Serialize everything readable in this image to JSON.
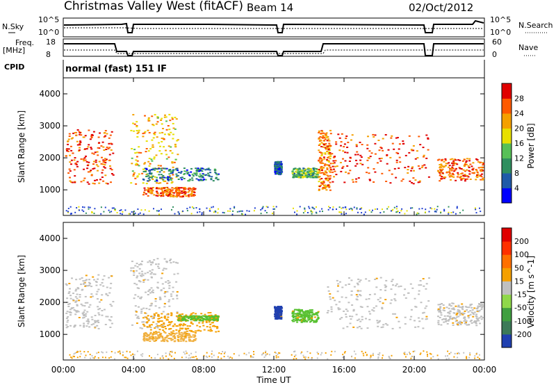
{
  "header": {
    "station": "Christmas Valley West (fitACF)",
    "beam": "Beam 14",
    "date": "02/Oct/2012",
    "cpid_label": "CPID",
    "cpid_value": "normal (fast) 151 IF"
  },
  "strips": {
    "nsky_label": "N.Sky",
    "nsearch_label": "N.Search",
    "nsky_ticks": [
      "10^5",
      "10^0"
    ],
    "nsearch_ticks": [
      "10^5",
      "10^0"
    ],
    "freq_label": "Freq.",
    "freq_unit": "[MHz]",
    "freq_ticks": [
      "18",
      "8"
    ],
    "nave_label": "Nave",
    "nave_ticks": [
      "60",
      "0"
    ]
  },
  "chart_data": [
    {
      "type": "heatmap",
      "name": "power",
      "ylabel": "Slant Range [km]",
      "yticks": [
        1000,
        2000,
        3000,
        4000
      ],
      "ylim": [
        200,
        4500
      ],
      "xlim": [
        0,
        24
      ],
      "colorbar": {
        "label": "Power [dB]",
        "ticks": [
          "28",
          "24",
          "20",
          "16",
          "12",
          "8",
          "4"
        ],
        "colors": [
          "#0000ff",
          "#1f5aa8",
          "#2f8f5f",
          "#57c057",
          "#e8e000",
          "#f5a000",
          "#ff5a00",
          "#e00000"
        ]
      },
      "regions": [
        {
          "x": [
            0.1,
            2.8
          ],
          "range": [
            1200,
            2900
          ],
          "level": 0.85
        },
        {
          "x": [
            3.8,
            6.5
          ],
          "range": [
            1200,
            3400
          ],
          "level": 0.65
        },
        {
          "x": [
            4.5,
            8.8
          ],
          "range": [
            1300,
            1700
          ],
          "level": 0.25
        },
        {
          "x": [
            4.5,
            7.5
          ],
          "range": [
            800,
            1100
          ],
          "level": 0.8
        },
        {
          "x": [
            12.0,
            12.4
          ],
          "range": [
            1500,
            1900
          ],
          "level": 0.2
        },
        {
          "x": [
            13.0,
            14.5
          ],
          "range": [
            1400,
            1700
          ],
          "level": 0.4
        },
        {
          "x": [
            14.5,
            15.2
          ],
          "range": [
            1000,
            2900
          ],
          "level": 0.75
        },
        {
          "x": [
            15.2,
            20.8
          ],
          "range": [
            1200,
            2800
          ],
          "level": 0.85
        },
        {
          "x": [
            21.3,
            23.9
          ],
          "range": [
            1300,
            2000
          ],
          "level": 0.8
        }
      ]
    },
    {
      "type": "heatmap",
      "name": "velocity",
      "ylabel": "Slant Range [km]",
      "yticks": [
        1000,
        2000,
        3000,
        4000
      ],
      "ylim": [
        200,
        4500
      ],
      "xlim": [
        0,
        24
      ],
      "xticks": [
        "00:00",
        "04:00",
        "08:00",
        "12:00",
        "16:00",
        "20:00",
        "00:00"
      ],
      "xlabel": "Time UT",
      "colorbar": {
        "label": "Velocity [m s^-1]",
        "ticks": [
          "200",
          "100",
          "50",
          "15",
          "-15",
          "-50",
          "-100",
          "-200"
        ],
        "colors": [
          "#2040b0",
          "#3c7a58",
          "#3f9f3f",
          "#8fd84a",
          "#c0c0c0",
          "#f5a000",
          "#ff7000",
          "#ff3000",
          "#e00000"
        ]
      },
      "regions": [
        {
          "x": [
            0.1,
            2.8
          ],
          "range": [
            1200,
            2900
          ],
          "level": "gray"
        },
        {
          "x": [
            3.8,
            6.5
          ],
          "range": [
            1200,
            3400
          ],
          "level": "gray"
        },
        {
          "x": [
            4.5,
            8.8
          ],
          "range": [
            1100,
            1700
          ],
          "level": "orange"
        },
        {
          "x": [
            6.5,
            8.8
          ],
          "range": [
            1450,
            1600
          ],
          "level": "green"
        },
        {
          "x": [
            4.5,
            7.5
          ],
          "range": [
            800,
            1100
          ],
          "level": "lightorange"
        },
        {
          "x": [
            12.0,
            12.4
          ],
          "range": [
            1500,
            1900
          ],
          "level": "blue"
        },
        {
          "x": [
            13.0,
            14.5
          ],
          "range": [
            1400,
            1800
          ],
          "level": "green"
        },
        {
          "x": [
            15.0,
            20.8
          ],
          "range": [
            1200,
            2800
          ],
          "level": "gray"
        },
        {
          "x": [
            21.3,
            23.9
          ],
          "range": [
            1300,
            2000
          ],
          "level": "gray"
        }
      ]
    }
  ]
}
